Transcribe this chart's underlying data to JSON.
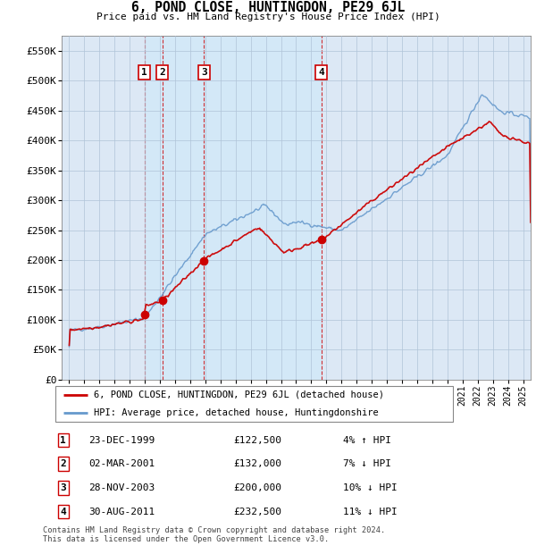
{
  "title": "6, POND CLOSE, HUNTINGDON, PE29 6JL",
  "subtitle": "Price paid vs. HM Land Registry's House Price Index (HPI)",
  "legend_label_red": "6, POND CLOSE, HUNTINGDON, PE29 6JL (detached house)",
  "legend_label_blue": "HPI: Average price, detached house, Huntingdonshire",
  "footer": "Contains HM Land Registry data © Crown copyright and database right 2024.\nThis data is licensed under the Open Government Licence v3.0.",
  "transactions": [
    {
      "num": 1,
      "date": "23-DEC-1999",
      "price": 122500,
      "pct": "4%",
      "dir": "↑",
      "year_x": 1999.97
    },
    {
      "num": 2,
      "date": "02-MAR-2001",
      "price": 132000,
      "pct": "7%",
      "dir": "↓",
      "year_x": 2001.17
    },
    {
      "num": 3,
      "date": "28-NOV-2003",
      "price": 200000,
      "pct": "10%",
      "dir": "↓",
      "year_x": 2003.9
    },
    {
      "num": 4,
      "date": "30-AUG-2011",
      "price": 232500,
      "pct": "11%",
      "dir": "↓",
      "year_x": 2011.66
    }
  ],
  "ylim": [
    0,
    575000
  ],
  "xlim_start": 1994.5,
  "xlim_end": 2025.5,
  "yticks": [
    0,
    50000,
    100000,
    150000,
    200000,
    250000,
    300000,
    350000,
    400000,
    450000,
    500000,
    550000
  ],
  "ytick_labels": [
    "£0",
    "£50K",
    "£100K",
    "£150K",
    "£200K",
    "£250K",
    "£300K",
    "£350K",
    "£400K",
    "£450K",
    "£500K",
    "£550K"
  ],
  "plot_bg_color": "#dce8f5",
  "shade_color": "#c8dff0",
  "grid_color": "#b0c4d8",
  "red_color": "#cc0000",
  "blue_color": "#6699cc",
  "transaction_dot_color": "#cc0000"
}
